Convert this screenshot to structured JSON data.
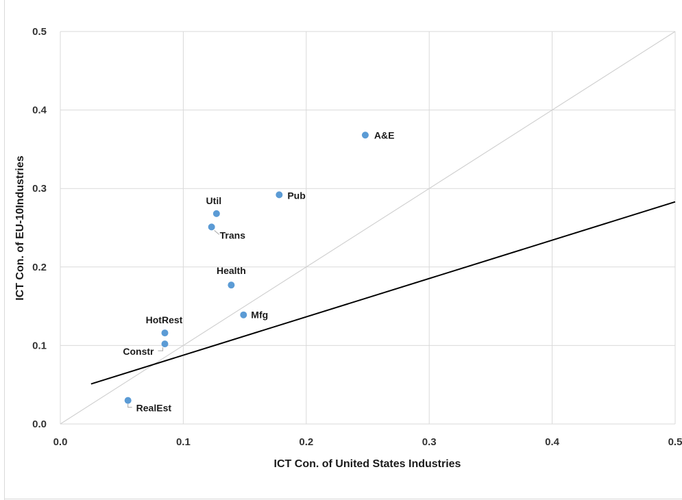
{
  "chart_data": {
    "type": "scatter",
    "xlabel": "ICT Con. of United States Industries",
    "ylabel": "ICT Con. of EU-10Industries",
    "xlim": [
      0.0,
      0.5
    ],
    "ylim": [
      0.0,
      0.5
    ],
    "x_ticks": [
      "0.0",
      "0.1",
      "0.2",
      "0.3",
      "0.4",
      "0.5"
    ],
    "y_ticks": [
      "0.0",
      "0.1",
      "0.2",
      "0.3",
      "0.4",
      "0.5"
    ],
    "grid": true,
    "legend": "none",
    "marker_color": "#5b9bd5",
    "diagonal_color": "#d0d0d0",
    "trend_color": "#000000",
    "points": [
      {
        "label": "A&E",
        "x": 0.248,
        "y": 0.368
      },
      {
        "label": "Pub",
        "x": 0.178,
        "y": 0.292
      },
      {
        "label": "Util",
        "x": 0.127,
        "y": 0.268
      },
      {
        "label": "Trans",
        "x": 0.123,
        "y": 0.251
      },
      {
        "label": "Health",
        "x": 0.139,
        "y": 0.177
      },
      {
        "label": "Mfg",
        "x": 0.149,
        "y": 0.139
      },
      {
        "label": "HotRest",
        "x": 0.085,
        "y": 0.116
      },
      {
        "label": "Constr",
        "x": 0.085,
        "y": 0.102
      },
      {
        "label": "RealEst",
        "x": 0.055,
        "y": 0.03
      }
    ],
    "reference_line": {
      "from": [
        0.0,
        0.0
      ],
      "to": [
        0.5,
        0.5
      ]
    },
    "trend_line": {
      "from": [
        0.025,
        0.051
      ],
      "to": [
        0.5,
        0.283
      ]
    }
  }
}
